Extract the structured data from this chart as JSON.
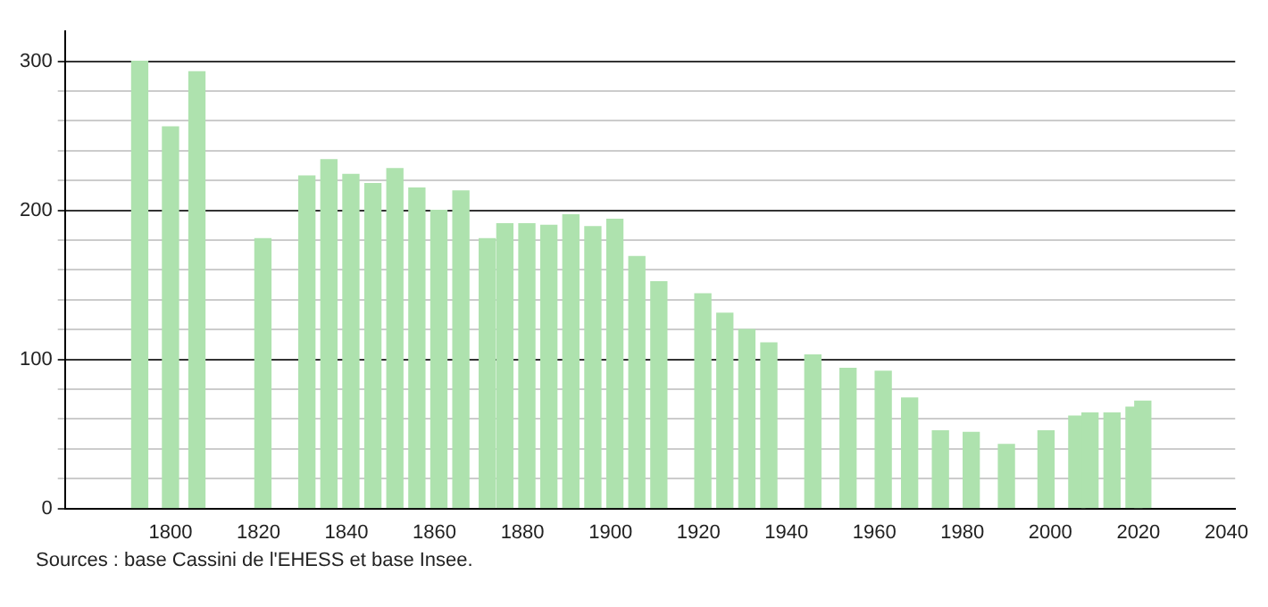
{
  "chart_data": {
    "type": "bar",
    "x": [
      1793,
      1800,
      1806,
      1821,
      1831,
      1836,
      1841,
      1846,
      1851,
      1856,
      1861,
      1866,
      1872,
      1876,
      1881,
      1886,
      1891,
      1896,
      1901,
      1906,
      1911,
      1921,
      1926,
      1931,
      1936,
      1946,
      1954,
      1962,
      1968,
      1975,
      1982,
      1990,
      1999,
      2006,
      2009,
      2014,
      2019,
      2021
    ],
    "values": [
      300,
      256,
      293,
      181,
      223,
      234,
      224,
      218,
      228,
      215,
      200,
      213,
      181,
      191,
      191,
      190,
      197,
      189,
      194,
      169,
      152,
      144,
      131,
      120,
      111,
      103,
      94,
      92,
      74,
      52,
      51,
      43,
      52,
      62,
      64,
      64,
      68,
      72
    ],
    "color": "#aee2ae",
    "xlim": [
      1776,
      2042
    ],
    "xticks": [
      1800,
      1820,
      1840,
      1860,
      1880,
      1900,
      1920,
      1940,
      1960,
      1980,
      2000,
      2020,
      2040
    ],
    "ylim": [
      0,
      320
    ],
    "yticks": [
      0,
      {
        "value": 20,
        "label": null
      },
      {
        "value": 40,
        "label": null
      },
      {
        "value": 60,
        "label": null
      },
      {
        "value": 80,
        "label": null
      },
      100,
      {
        "value": 120,
        "label": null
      },
      {
        "value": 140,
        "label": null
      },
      {
        "value": 160,
        "label": null
      },
      {
        "value": 180,
        "label": null
      },
      200,
      {
        "value": 220,
        "label": null
      },
      {
        "value": 240,
        "label": null
      },
      {
        "value": 260,
        "label": null
      },
      {
        "value": 280,
        "label": null
      },
      300
    ],
    "grid": true,
    "annotations": [
      "Sources : base Cassini de l'EHESS et base Insee."
    ]
  }
}
